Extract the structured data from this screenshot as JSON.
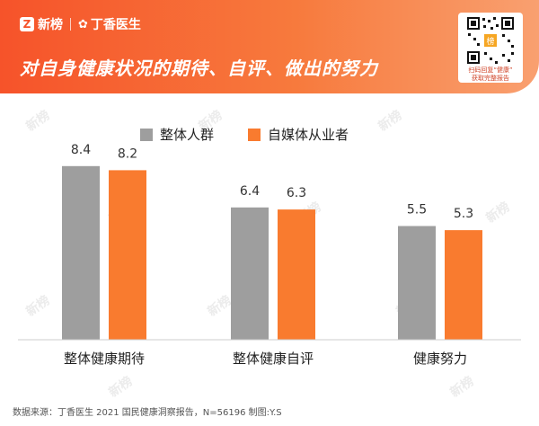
{
  "header": {
    "brand_name": "新榜",
    "partner_name": "丁香医生",
    "title": "对自身健康状况的期待、自评、做出的努力",
    "qr_caption_line1": "扫码回复“健康”",
    "qr_caption_line2": "获取完整报告",
    "qr_center_text": "榜"
  },
  "icons": {
    "brand": "xinbang-logo-icon",
    "partner": "leaf-icon",
    "qr": "qr-code-icon",
    "watermark": "xinbang-watermark-icon"
  },
  "colors": {
    "header_start": "#f6532a",
    "header_end": "#f9a070",
    "gray_series": "#9e9e9e",
    "orange_series": "#f97b2f"
  },
  "chart_data": {
    "type": "bar",
    "categories": [
      "整体健康期待",
      "整体健康自评",
      "健康努力"
    ],
    "series": [
      {
        "name": "整体人群",
        "values": [
          8.4,
          6.4,
          5.5
        ],
        "color": "#9e9e9e"
      },
      {
        "name": "自媒体从业者",
        "values": [
          8.2,
          6.3,
          5.3
        ],
        "color": "#f97b2f"
      }
    ],
    "ylim": [
      0,
      10
    ],
    "legend": "top-center",
    "grid": false
  },
  "footer": {
    "source": "数据来源：丁香医生 2021 国民健康洞察报告，N=56196 制图:Y.S"
  },
  "watermark_text": "新榜"
}
